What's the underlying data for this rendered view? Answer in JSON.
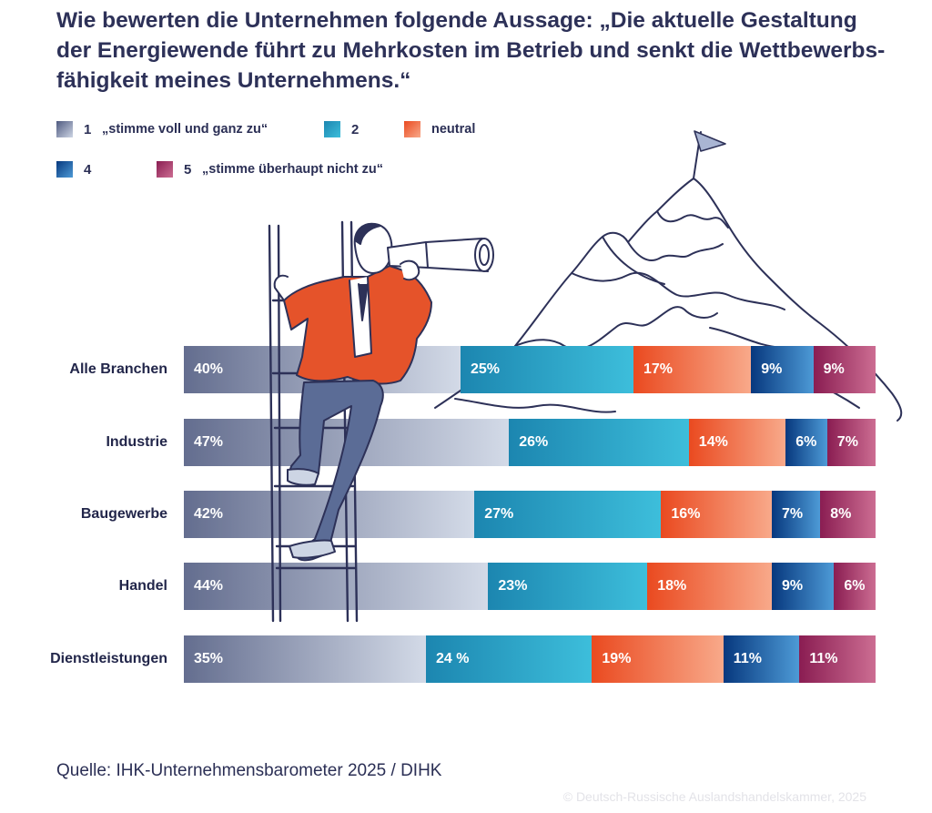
{
  "chart_data": {
    "type": "bar",
    "orientation": "horizontal",
    "stacked": true,
    "percent_stacked": true,
    "title": "Wie bewerten die Unternehmen folgende Aussage: „Die aktuelle Gestaltung der Energiewende führt zu Mehrkosten im Betrieb und senkt die Wettbewerbs-fähigkeit meines Unternehmens.“",
    "categories": [
      "Alle Branchen",
      "Industrie",
      "Baugewerbe",
      "Handel",
      "Dienstleistungen"
    ],
    "legend": [
      {
        "num": "1",
        "text": "„stimme voll und ganz zu“",
        "key": "s1"
      },
      {
        "num": "2",
        "text": "",
        "key": "s2"
      },
      {
        "num": "",
        "text": "neutral",
        "key": "s3"
      },
      {
        "num": "4",
        "text": "",
        "key": "s4"
      },
      {
        "num": "5",
        "text": "„stimme überhaupt nicht zu“",
        "key": "s5"
      }
    ],
    "series": [
      {
        "name": "1 „stimme voll und ganz zu“",
        "key": "s1",
        "values": [
          40,
          47,
          42,
          44,
          35
        ],
        "labels": [
          "40%",
          "47%",
          "42%",
          "44%",
          "35%"
        ]
      },
      {
        "name": "2",
        "key": "s2",
        "values": [
          25,
          26,
          27,
          23,
          24
        ],
        "labels": [
          "25%",
          "26%",
          "27%",
          "23%",
          "24 %"
        ]
      },
      {
        "name": "neutral",
        "key": "s3",
        "values": [
          17,
          14,
          16,
          18,
          19
        ],
        "labels": [
          "17%",
          "14%",
          "16%",
          "18%",
          "19%"
        ]
      },
      {
        "name": "4",
        "key": "s4",
        "values": [
          9,
          6,
          7,
          9,
          11
        ],
        "labels": [
          "9%",
          "6%",
          "7%",
          "9%",
          "11%"
        ]
      },
      {
        "name": "5 „stimme überhaupt nicht zu“",
        "key": "s5",
        "values": [
          9,
          7,
          8,
          6,
          11
        ],
        "labels": [
          "9%",
          "7%",
          "8%",
          "6%",
          "11%"
        ]
      }
    ],
    "xlim": [
      0,
      100
    ],
    "source": "Quelle: IHK-Unternehmensbarometer 2025 / DIHK",
    "copyright": "© Deutsch-Russische Auslandshandelskammer, 2025"
  },
  "colors": {
    "s1": [
      "#4f5a80",
      "#cdd5e4"
    ],
    "s2": [
      "#1c86b0",
      "#3dbedb"
    ],
    "s3": [
      "#ea4a20",
      "#f8a98a"
    ],
    "s4": [
      "#07387e",
      "#4d9ad6"
    ],
    "s5": [
      "#8a1d52",
      "#cc6d92"
    ],
    "text": "#2b2f55",
    "illustration_line": "#2d3158",
    "jacket": "#e5532a",
    "trousers": "#5b6c96"
  }
}
